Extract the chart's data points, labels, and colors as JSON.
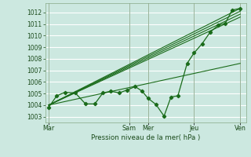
{
  "title": "Pression niveau de la mer( hPa )",
  "background_color": "#cce8e0",
  "grid_color": "#ffffff",
  "line_color": "#1a6b1a",
  "dark_vline_color": "#336633",
  "ylim": [
    1002.5,
    1012.8
  ],
  "yticks": [
    1003,
    1004,
    1005,
    1006,
    1007,
    1008,
    1009,
    1010,
    1011,
    1012
  ],
  "day_labels": [
    "Mar",
    "Sam",
    "Mer",
    "Jeu",
    "Ven"
  ],
  "day_x": [
    0.0,
    3.5,
    4.3,
    6.3,
    8.3
  ],
  "forecast_lines": [
    {
      "x": [
        0.0,
        8.3
      ],
      "y": [
        1004.0,
        1012.35
      ]
    },
    {
      "x": [
        0.0,
        8.3
      ],
      "y": [
        1004.0,
        1012.1
      ]
    },
    {
      "x": [
        0.0,
        8.3
      ],
      "y": [
        1004.0,
        1011.85
      ]
    },
    {
      "x": [
        0.0,
        8.3
      ],
      "y": [
        1004.0,
        1011.6
      ]
    },
    {
      "x": [
        0.0,
        8.3
      ],
      "y": [
        1004.0,
        1007.6
      ]
    }
  ],
  "measured_x": [
    0.0,
    0.35,
    0.7,
    1.15,
    1.6,
    2.0,
    2.35,
    2.7,
    3.05,
    3.4,
    3.75,
    4.05,
    4.3,
    4.65,
    5.0,
    5.3,
    5.6,
    6.0,
    6.3,
    6.65,
    7.0,
    7.35,
    7.65,
    7.95,
    8.3
  ],
  "measured_y": [
    1003.8,
    1004.8,
    1005.1,
    1005.05,
    1004.1,
    1004.1,
    1005.05,
    1005.2,
    1005.05,
    1005.3,
    1005.6,
    1005.2,
    1004.6,
    1004.05,
    1003.05,
    1004.7,
    1004.8,
    1007.6,
    1008.5,
    1009.3,
    1010.3,
    1010.9,
    1011.05,
    1012.2,
    1012.35
  ],
  "figsize": [
    3.2,
    2.0
  ],
  "dpi": 100
}
